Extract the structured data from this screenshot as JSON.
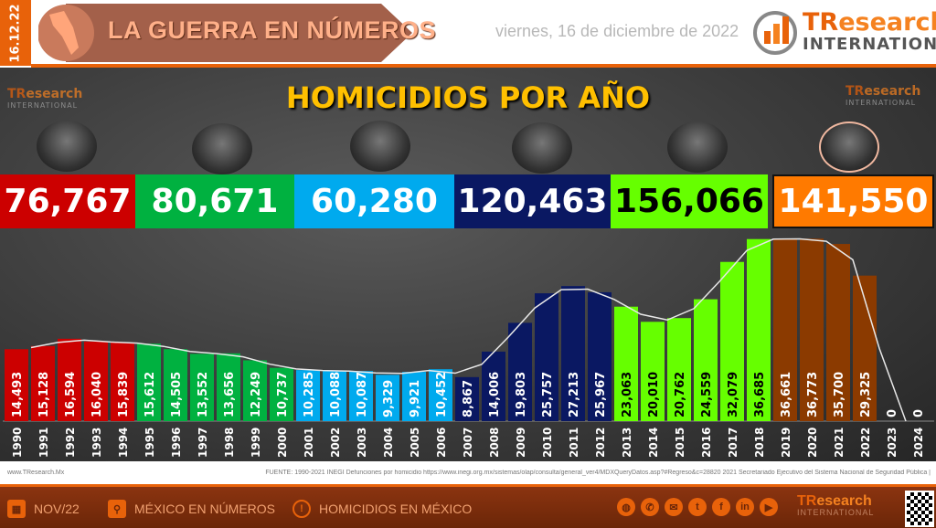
{
  "header": {
    "date_short": "16.12.22",
    "banner_title": "LA GUERRA EN NÚMEROS",
    "date_long": "viernes, 16 de diciembre de 2022",
    "logo_tr": "TR",
    "logo_research": "esearch",
    "logo_international": "INTERNATIONAL"
  },
  "summary": [
    {
      "value": "76,767",
      "color": "#cc0000",
      "text_color": "#ffffff"
    },
    {
      "value": "80,671",
      "color": "#00b140",
      "text_color": "#ffffff"
    },
    {
      "value": "60,280",
      "color": "#00aaee",
      "text_color": "#ffffff"
    },
    {
      "value": "120,463",
      "color": "#0a1862",
      "text_color": "#ffffff"
    },
    {
      "value": "156,066",
      "color": "#66ff00",
      "text_color": "#000000"
    },
    {
      "value": "141,550",
      "color": "#ff7a00",
      "text_color": "#ffffff"
    }
  ],
  "chart_data": {
    "type": "bar",
    "title": "HOMICIDIOS POR AÑO",
    "categories": [
      "1990",
      "1991",
      "1992",
      "1993",
      "1994",
      "1995",
      "1996",
      "1997",
      "1998",
      "1999",
      "2000",
      "2001",
      "2002",
      "2003",
      "2004",
      "2005",
      "2006",
      "2007",
      "2008",
      "2009",
      "2010",
      "2011",
      "2012",
      "2013",
      "2014",
      "2015",
      "2016",
      "2017",
      "2018",
      "2019",
      "2020",
      "2021",
      "2022",
      "2023",
      "2024"
    ],
    "values": [
      14493,
      15128,
      16594,
      16040,
      15839,
      15612,
      14505,
      13552,
      13656,
      12249,
      10737,
      10285,
      10088,
      10087,
      9329,
      9921,
      10452,
      8867,
      14006,
      19803,
      25757,
      27213,
      25967,
      23063,
      20010,
      20762,
      24559,
      32079,
      36685,
      36661,
      36773,
      35700,
      29325,
      0,
      0
    ],
    "labels": [
      "14,493",
      "15,128",
      "16,594",
      "16,040",
      "15,839",
      "15,612",
      "14,505",
      "13,552",
      "13,656",
      "12,249",
      "10,737",
      "10,285",
      "10,088",
      "10,087",
      "9,329",
      "9,921",
      "10,452",
      "8,867",
      "14,006",
      "19,803",
      "25,757",
      "27,213",
      "25,967",
      "23,063",
      "20,010",
      "20,762",
      "24,559",
      "32,079",
      "36,685",
      "36,661",
      "36,773",
      "35,700",
      "29,325",
      "0",
      "0"
    ],
    "bar_color_groups": [
      {
        "from": "1990",
        "to": "1994",
        "color": "#cc0000",
        "label_color": "#ffffff"
      },
      {
        "from": "1995",
        "to": "2000",
        "color": "#00b140",
        "label_color": "#ffffff"
      },
      {
        "from": "2001",
        "to": "2006",
        "color": "#00aaee",
        "label_color": "#ffffff"
      },
      {
        "from": "2007",
        "to": "2012",
        "color": "#0a1862",
        "label_color": "#ffffff"
      },
      {
        "from": "2013",
        "to": "2018",
        "color": "#66ff00",
        "label_color": "#000000"
      },
      {
        "from": "2019",
        "to": "2024",
        "color": "#8b3a00",
        "label_color": "#ffffff"
      }
    ],
    "trendline": true,
    "ylim": [
      0,
      37000
    ],
    "grid": false
  },
  "source": {
    "left": "www.TResearch.Mx",
    "right": "FUENTE: 1990-2021 INEGI Defunciones por homicidio https://www.inegi.org.mx/sistemas/olap/consulta/general_ver4/MDXQueryDatos.asp?#Regreso&c=28820  2021 Secretariado Ejecutivo del Sistema Nacional de Seguridad Pública |"
  },
  "footer": {
    "date": "NOV/22",
    "mexico": "MÉXICO EN NÚMEROS",
    "homicidios": "HOMICIDIOS EN MÉXICO",
    "social_icons": [
      "globe",
      "phone",
      "mail",
      "twitter",
      "facebook",
      "linkedin",
      "youtube"
    ]
  }
}
